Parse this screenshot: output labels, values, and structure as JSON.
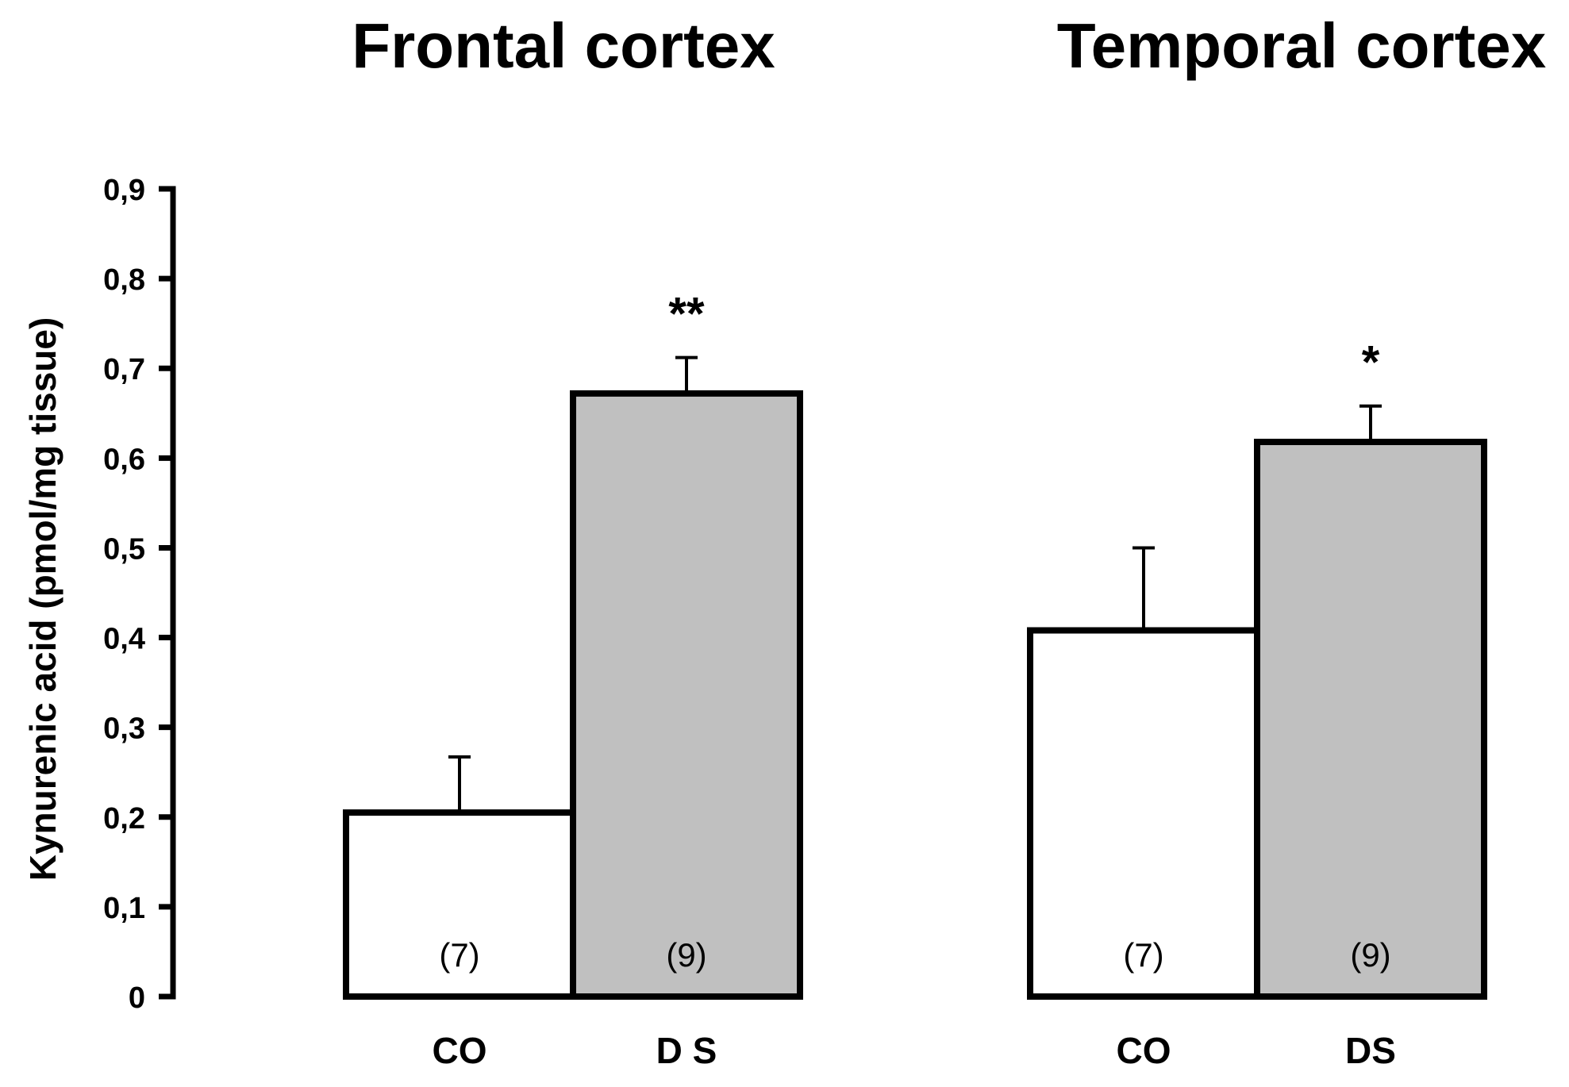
{
  "chart_data": {
    "type": "bar",
    "ylabel": "Kynurenic acid (pmol/mg tissue)",
    "ylim": [
      0,
      0.9
    ],
    "yticks": [
      "0",
      "0,1",
      "0,2",
      "0,3",
      "0,4",
      "0,5",
      "0,6",
      "0,7",
      "0,8",
      "0,9"
    ],
    "grid": false,
    "panels": [
      {
        "title": "Frontal cortex",
        "bars": [
          {
            "category": "CO",
            "value": 0.205,
            "error": 0.062,
            "n_label": "(7)",
            "significance": "",
            "fill": "#ffffff"
          },
          {
            "category": "D S",
            "value": 0.672,
            "error": 0.04,
            "n_label": "(9)",
            "significance": "**",
            "fill": "#c0c0c0"
          }
        ]
      },
      {
        "title": "Temporal cortex",
        "bars": [
          {
            "category": "CO",
            "value": 0.408,
            "error": 0.092,
            "n_label": "(7)",
            "significance": "",
            "fill": "#ffffff"
          },
          {
            "category": "DS",
            "value": 0.618,
            "error": 0.04,
            "n_label": "(9)",
            "significance": "*",
            "fill": "#c0c0c0"
          }
        ]
      }
    ]
  }
}
